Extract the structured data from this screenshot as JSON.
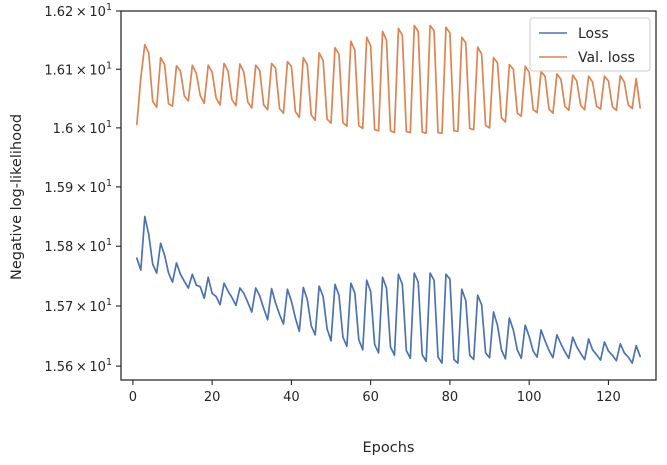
{
  "chart_data": {
    "type": "line",
    "xlabel": "Epochs",
    "ylabel": "Negative log-likelihood",
    "xlim": [
      -3,
      132
    ],
    "ylim": [
      15.577,
      16.2
    ],
    "xticks": [
      0,
      20,
      40,
      60,
      80,
      100,
      120
    ],
    "xtick_labels": [
      "0",
      "20",
      "40",
      "60",
      "80",
      "100",
      "120"
    ],
    "yticks": [
      15.6,
      15.7,
      15.8,
      15.9,
      16.0,
      16.1,
      16.2
    ],
    "ytick_labels": [
      {
        "mantissa": "1.56",
        "base": "10",
        "exp": "1"
      },
      {
        "mantissa": "1.57",
        "base": "10",
        "exp": "1"
      },
      {
        "mantissa": "1.58",
        "base": "10",
        "exp": "1"
      },
      {
        "mantissa": "1.59",
        "base": "10",
        "exp": "1"
      },
      {
        "mantissa": "",
        "base": "10",
        "exp": "1",
        "prefix": "1.6"
      },
      {
        "mantissa": "1.61",
        "base": "10",
        "exp": "1"
      },
      {
        "mantissa": "1.62",
        "base": "10",
        "exp": "1"
      }
    ],
    "yscale": "log",
    "legend_position": "top-right",
    "grid": false,
    "series": [
      {
        "name": "Loss",
        "color": "#4c72b0",
        "x": [
          1,
          2,
          3,
          4,
          5,
          6,
          7,
          8,
          9,
          10,
          11,
          12,
          13,
          14,
          15,
          16,
          17,
          18,
          19,
          20,
          21,
          22,
          23,
          24,
          25,
          26,
          27,
          28,
          29,
          30,
          31,
          32,
          33,
          34,
          35,
          36,
          37,
          38,
          39,
          40,
          41,
          42,
          43,
          44,
          45,
          46,
          47,
          48,
          49,
          50,
          51,
          52,
          53,
          54,
          55,
          56,
          57,
          58,
          59,
          60,
          61,
          62,
          63,
          64,
          65,
          66,
          67,
          68,
          69,
          70,
          71,
          72,
          73,
          74,
          75,
          76,
          77,
          78,
          79,
          80,
          81,
          82,
          83,
          84,
          85,
          86,
          87,
          88,
          89,
          90,
          91,
          92,
          93,
          94,
          95,
          96,
          97,
          98,
          99,
          100,
          101,
          102,
          103,
          104,
          105,
          106,
          107,
          108,
          109,
          110,
          111,
          112,
          113,
          114,
          115,
          116,
          117,
          118,
          119,
          120,
          121,
          122,
          123,
          124,
          125,
          126,
          127,
          128
        ],
        "y": [
          15.78,
          15.76,
          15.85,
          15.82,
          15.77,
          15.755,
          15.805,
          15.785,
          15.755,
          15.74,
          15.772,
          15.753,
          15.741,
          15.73,
          15.753,
          15.735,
          15.732,
          15.713,
          15.748,
          15.721,
          15.716,
          15.702,
          15.738,
          15.725,
          15.714,
          15.701,
          15.73,
          15.721,
          15.706,
          15.69,
          15.73,
          15.717,
          15.696,
          15.677,
          15.729,
          15.705,
          15.686,
          15.67,
          15.728,
          15.708,
          15.68,
          15.658,
          15.731,
          15.711,
          15.667,
          15.652,
          15.733,
          15.716,
          15.662,
          15.642,
          15.736,
          15.718,
          15.648,
          15.633,
          15.738,
          15.722,
          15.644,
          15.627,
          15.743,
          15.724,
          15.636,
          15.622,
          15.748,
          15.73,
          15.632,
          15.618,
          15.753,
          15.736,
          15.626,
          15.613,
          15.755,
          15.74,
          15.619,
          15.608,
          15.755,
          15.743,
          15.615,
          15.605,
          15.753,
          15.745,
          15.611,
          15.605,
          15.728,
          15.709,
          15.618,
          15.611,
          15.718,
          15.702,
          15.622,
          15.614,
          15.69,
          15.668,
          15.627,
          15.612,
          15.68,
          15.66,
          15.627,
          15.613,
          15.668,
          15.649,
          15.625,
          15.615,
          15.66,
          15.642,
          15.626,
          15.614,
          15.652,
          15.637,
          15.624,
          15.613,
          15.648,
          15.632,
          15.621,
          15.611,
          15.645,
          15.627,
          15.619,
          15.61,
          15.64,
          15.625,
          15.618,
          15.609,
          15.637,
          15.622,
          15.615,
          15.605,
          15.634,
          15.616
        ]
      },
      {
        "name": "Val. loss",
        "color": "#dd8452",
        "x": [
          1,
          2,
          3,
          4,
          5,
          6,
          7,
          8,
          9,
          10,
          11,
          12,
          13,
          14,
          15,
          16,
          17,
          18,
          19,
          20,
          21,
          22,
          23,
          24,
          25,
          26,
          27,
          28,
          29,
          30,
          31,
          32,
          33,
          34,
          35,
          36,
          37,
          38,
          39,
          40,
          41,
          42,
          43,
          44,
          45,
          46,
          47,
          48,
          49,
          50,
          51,
          52,
          53,
          54,
          55,
          56,
          57,
          58,
          59,
          60,
          61,
          62,
          63,
          64,
          65,
          66,
          67,
          68,
          69,
          70,
          71,
          72,
          73,
          74,
          75,
          76,
          77,
          78,
          79,
          80,
          81,
          82,
          83,
          84,
          85,
          86,
          87,
          88,
          89,
          90,
          91,
          92,
          93,
          94,
          95,
          96,
          97,
          98,
          99,
          100,
          101,
          102,
          103,
          104,
          105,
          106,
          107,
          108,
          109,
          110,
          111,
          112,
          113,
          114,
          115,
          116,
          117,
          118,
          119,
          120,
          121,
          122,
          123,
          124,
          125,
          126,
          127,
          128
        ],
        "y": [
          16.006,
          16.085,
          16.142,
          16.128,
          16.045,
          16.035,
          16.12,
          16.108,
          16.041,
          16.037,
          16.106,
          16.097,
          16.054,
          16.046,
          16.107,
          16.093,
          16.055,
          16.042,
          16.107,
          16.095,
          16.051,
          16.039,
          16.11,
          16.097,
          16.048,
          16.038,
          16.109,
          16.095,
          16.044,
          16.034,
          16.107,
          16.098,
          16.039,
          16.031,
          16.11,
          16.102,
          16.033,
          16.025,
          16.113,
          16.105,
          16.028,
          16.018,
          16.12,
          16.108,
          16.022,
          16.013,
          16.128,
          16.115,
          16.015,
          16.008,
          16.137,
          16.126,
          16.009,
          16.003,
          16.148,
          16.133,
          16.004,
          15.999,
          16.155,
          16.14,
          15.997,
          15.995,
          16.165,
          16.15,
          15.995,
          15.992,
          16.17,
          16.158,
          15.994,
          15.992,
          16.175,
          16.165,
          15.993,
          15.991,
          16.175,
          16.166,
          15.992,
          15.991,
          16.172,
          16.162,
          15.995,
          15.994,
          16.155,
          16.145,
          15.999,
          15.997,
          16.138,
          16.126,
          16.004,
          16.0,
          16.12,
          16.111,
          16.017,
          16.01,
          16.108,
          16.1,
          16.025,
          16.02,
          16.105,
          16.095,
          16.031,
          16.026,
          16.096,
          16.088,
          16.032,
          16.025,
          16.092,
          16.083,
          16.037,
          16.03,
          16.09,
          16.08,
          16.038,
          16.031,
          16.088,
          16.078,
          16.037,
          16.032,
          16.088,
          16.08,
          16.036,
          16.03,
          16.089,
          16.078,
          16.039,
          16.033,
          16.084,
          16.034
        ]
      }
    ]
  }
}
